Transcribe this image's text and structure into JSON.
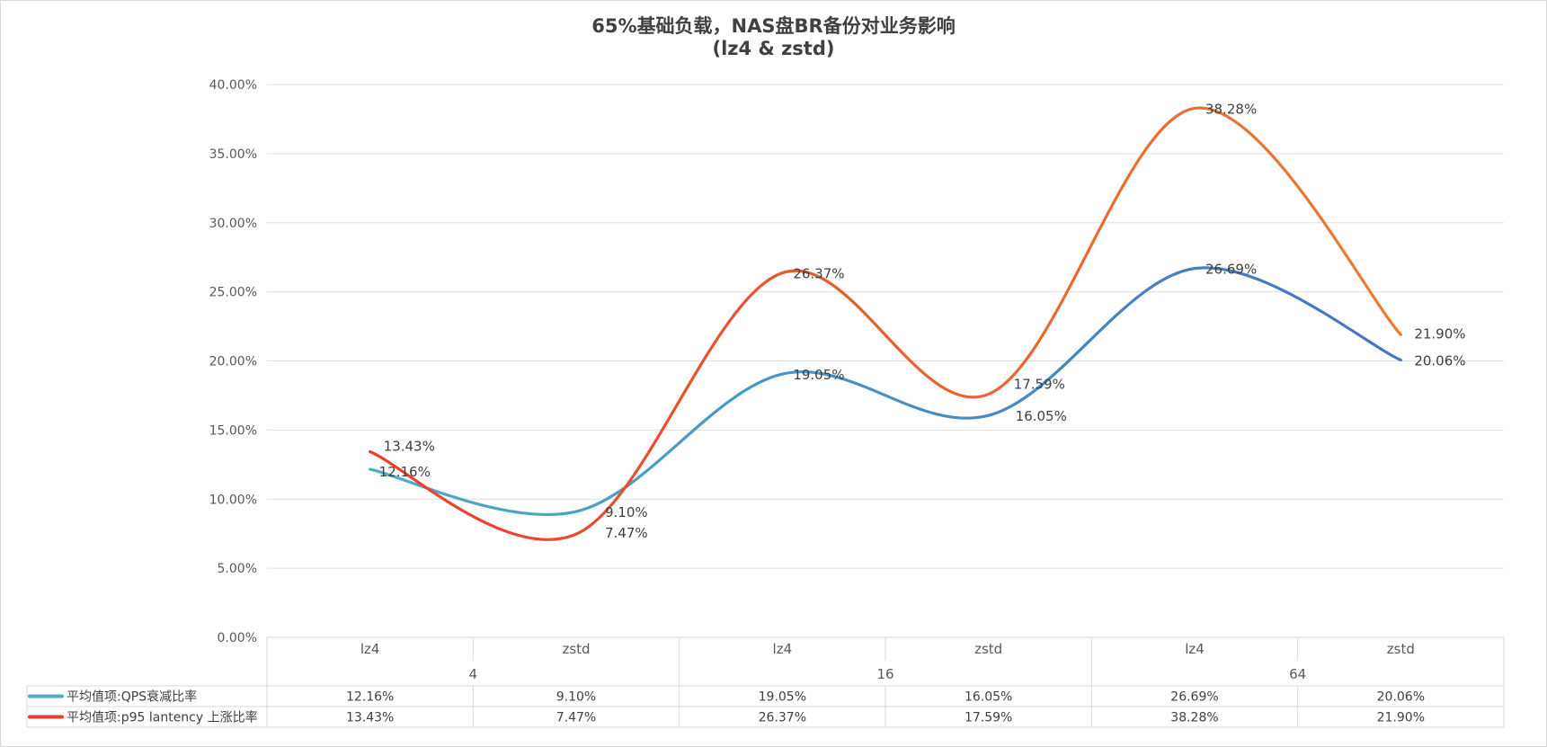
{
  "chart_data": {
    "type": "line",
    "smooth": true,
    "title": "65%基础负载，NAS盘BR备份对业务影响",
    "subtitle": "(lz4 & zstd)",
    "categories": [
      "lz4",
      "zstd",
      "lz4",
      "zstd",
      "lz4",
      "zstd"
    ],
    "groups": [
      {
        "label": "4",
        "span": 2
      },
      {
        "label": "16",
        "span": 2
      },
      {
        "label": "64",
        "span": 2
      }
    ],
    "ylim": [
      0,
      40
    ],
    "yticks": [
      "0.00%",
      "5.00%",
      "10.00%",
      "15.00%",
      "20.00%",
      "25.00%",
      "30.00%",
      "35.00%",
      "40.00%"
    ],
    "grid": true,
    "legend_position": "data-table",
    "series": [
      {
        "name": "平均值项:QPS衰减比率",
        "values": [
          12.16,
          9.1,
          19.05,
          16.05,
          26.69,
          20.06
        ],
        "labels": [
          "12.16%",
          "9.10%",
          "19.05%",
          "16.05%",
          "26.69%",
          "20.06%"
        ],
        "color_start": "#4bacc6",
        "color_end": "#4472c4"
      },
      {
        "name": "平均值项:p95 lantency 上涨比率",
        "values": [
          13.43,
          7.47,
          26.37,
          17.59,
          38.28,
          21.9
        ],
        "labels": [
          "13.43%",
          "7.47%",
          "26.37%",
          "17.59%",
          "38.28%",
          "21.90%"
        ],
        "color_start": "#ea3d30",
        "color_end": "#ed7d31"
      }
    ]
  }
}
